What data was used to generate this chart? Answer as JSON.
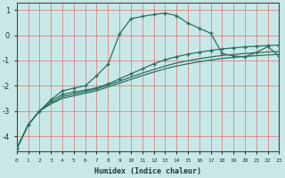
{
  "xlabel": "Humidex (Indice chaleur)",
  "bg_color": "#c8e8e8",
  "grid_color": "#e07070",
  "line_color": "#2a7060",
  "x_min": 0,
  "x_max": 23,
  "y_min": -4.6,
  "y_max": 1.3,
  "yticks": [
    -4,
    -3,
    -2,
    -1,
    0,
    1
  ],
  "curve1_x": [
    0,
    1,
    2,
    3,
    4,
    5,
    6,
    7,
    8,
    9,
    10,
    11,
    12,
    13,
    14,
    15,
    16,
    17,
    18,
    19,
    20,
    21,
    22,
    23
  ],
  "curve1_y": [
    -4.5,
    -3.55,
    -3.0,
    -2.55,
    -2.2,
    -2.1,
    -2.0,
    -1.6,
    -1.15,
    0.05,
    0.65,
    0.75,
    0.82,
    0.88,
    0.78,
    0.48,
    0.28,
    0.08,
    -0.72,
    -0.82,
    -0.85,
    -0.68,
    -0.45,
    -0.82
  ],
  "curve2_x": [
    0,
    1,
    2,
    3,
    4,
    5,
    6,
    7,
    8,
    9,
    10,
    11,
    12,
    13,
    14,
    15,
    16,
    17,
    18,
    19,
    20,
    21,
    22,
    23
  ],
  "curve2_y": [
    -4.5,
    -3.55,
    -3.0,
    -2.6,
    -2.35,
    -2.25,
    -2.18,
    -2.08,
    -1.93,
    -1.73,
    -1.53,
    -1.33,
    -1.13,
    -0.97,
    -0.85,
    -0.75,
    -0.67,
    -0.6,
    -0.54,
    -0.5,
    -0.46,
    -0.43,
    -0.41,
    -0.39
  ],
  "curve3_x": [
    0,
    1,
    2,
    3,
    4,
    5,
    6,
    7,
    8,
    9,
    10,
    11,
    12,
    13,
    14,
    15,
    16,
    17,
    18,
    19,
    20,
    21,
    22,
    23
  ],
  "curve3_y": [
    -4.5,
    -3.55,
    -3.0,
    -2.68,
    -2.43,
    -2.33,
    -2.23,
    -2.13,
    -1.98,
    -1.82,
    -1.66,
    -1.5,
    -1.36,
    -1.22,
    -1.1,
    -1.01,
    -0.93,
    -0.86,
    -0.8,
    -0.76,
    -0.72,
    -0.69,
    -0.66,
    -0.64
  ],
  "curve4_x": [
    0,
    1,
    2,
    3,
    4,
    5,
    6,
    7,
    8,
    9,
    10,
    11,
    12,
    13,
    14,
    15,
    16,
    17,
    18,
    19,
    20,
    21,
    22,
    23
  ],
  "curve4_y": [
    -4.5,
    -3.55,
    -3.0,
    -2.72,
    -2.5,
    -2.4,
    -2.3,
    -2.2,
    -2.05,
    -1.9,
    -1.75,
    -1.6,
    -1.46,
    -1.33,
    -1.22,
    -1.13,
    -1.05,
    -0.98,
    -0.92,
    -0.88,
    -0.84,
    -0.81,
    -0.78,
    -0.76
  ]
}
